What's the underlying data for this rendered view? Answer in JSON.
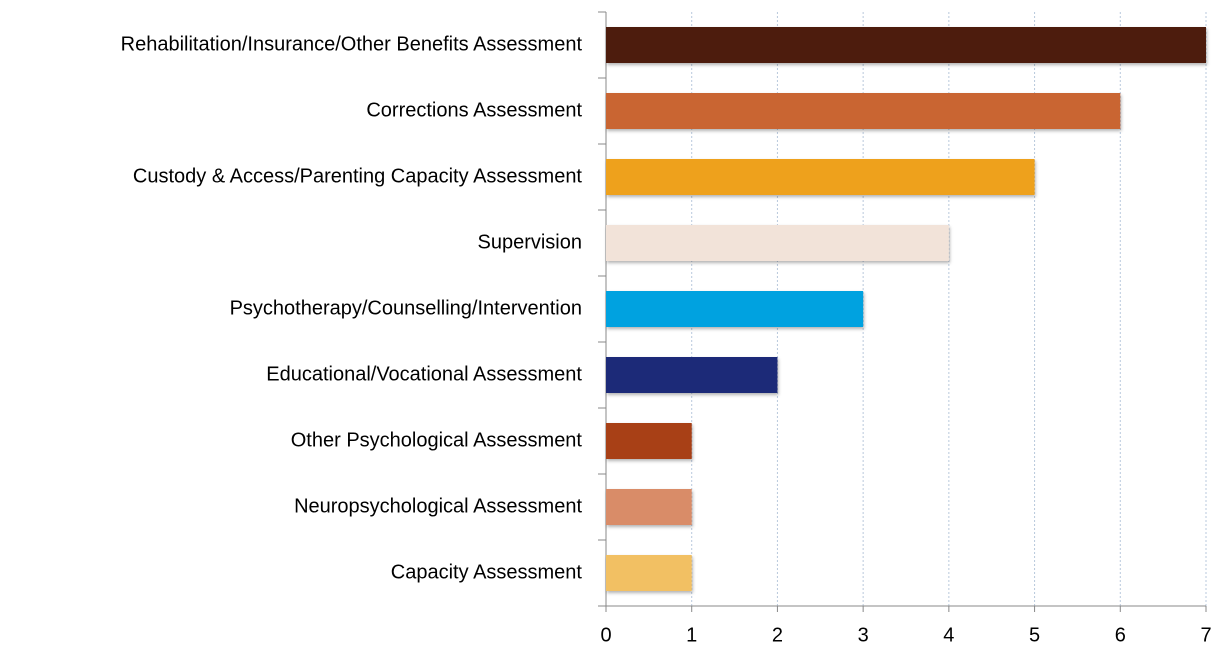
{
  "chart_data": {
    "type": "bar",
    "orientation": "horizontal",
    "categories": [
      "Rehabilitation/Insurance/Other Benefits Assessment",
      "Corrections Assessment",
      "Custody & Access/Parenting Capacity Assessment",
      "Supervision",
      "Psychotherapy/Counselling/Intervention",
      "Educational/Vocational Assessment",
      "Other Psychological Assessment",
      "Neuropsychological Assessment",
      "Capacity Assessment"
    ],
    "values": [
      7,
      6,
      5,
      4,
      3,
      2,
      1,
      1,
      1
    ],
    "colors": [
      "#4e1e0f",
      "#c96533",
      "#eea11c",
      "#f2e3d9",
      "#00a2e0",
      "#1c2a78",
      "#a83f18",
      "#d98c68",
      "#f2c063"
    ],
    "xlim": [
      0,
      7
    ],
    "xticks": [
      0,
      1,
      2,
      3,
      4,
      5,
      6,
      7
    ],
    "grid": true
  }
}
